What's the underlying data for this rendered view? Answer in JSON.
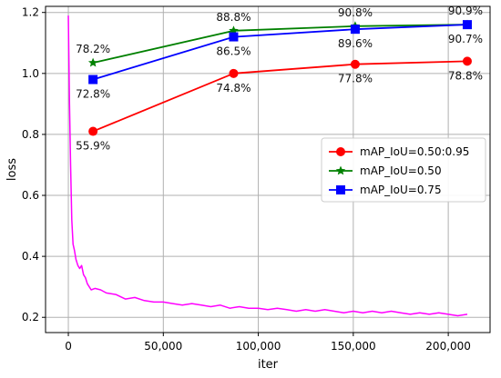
{
  "chart_data": {
    "type": "line",
    "title": "",
    "xlabel": "iter",
    "ylabel": "loss",
    "xlim": [
      -12000,
      222000
    ],
    "ylim": [
      0.15,
      1.22
    ],
    "xticks": [
      0,
      50000,
      100000,
      150000,
      200000
    ],
    "xtick_labels": [
      "0",
      "50,000",
      "100,000",
      "150,000",
      "200,000"
    ],
    "yticks": [
      0.2,
      0.4,
      0.6,
      0.8,
      1.0,
      1.2
    ],
    "ytick_labels": [
      "0.2",
      "0.4",
      "0.6",
      "0.8",
      "1.0",
      "1.2"
    ],
    "grid": true,
    "legend_position": "center-right",
    "series": [
      {
        "name": "mAP_IoU=0.50:0.95",
        "color": "#ff0000",
        "marker": "circle",
        "x": [
          13000,
          87000,
          151000,
          210000
        ],
        "y": [
          0.81,
          1.0,
          1.03,
          1.04
        ],
        "labels": [
          "55.9%",
          "74.8%",
          "77.8%",
          "78.8%"
        ],
        "label_position": "below"
      },
      {
        "name": "mAP_IoU=0.50",
        "color": "#008000",
        "marker": "star",
        "x": [
          13000,
          87000,
          151000,
          210000
        ],
        "y": [
          1.035,
          1.14,
          1.155,
          1.16
        ],
        "labels": [
          "78.2%",
          "88.8%",
          "90.8%",
          "90.9%"
        ],
        "label_position": "above"
      },
      {
        "name": "mAP_IoU=0.75",
        "color": "#0000ff",
        "marker": "square",
        "x": [
          13000,
          87000,
          151000,
          210000
        ],
        "y": [
          0.98,
          1.12,
          1.145,
          1.16
        ],
        "labels": [
          "72.8%",
          "86.5%",
          "89.6%",
          "90.7%"
        ],
        "label_position": "below"
      }
    ],
    "loss_curve": {
      "color": "#ff00ff",
      "description": "training loss, not in legend",
      "x": [
        0,
        600,
        1200,
        1800,
        2500,
        3200,
        4000,
        5000,
        6000,
        7000,
        8000,
        9000,
        10000,
        12000,
        14000,
        17000,
        20000,
        25000,
        30000,
        35000,
        40000,
        45000,
        50000,
        55000,
        60000,
        65000,
        70000,
        75000,
        80000,
        85000,
        90000,
        95000,
        100000,
        105000,
        110000,
        115000,
        120000,
        125000,
        130000,
        135000,
        140000,
        145000,
        150000,
        155000,
        160000,
        165000,
        170000,
        175000,
        180000,
        185000,
        190000,
        195000,
        200000,
        205000,
        210000
      ],
      "y": [
        1.19,
        0.9,
        0.7,
        0.52,
        0.44,
        0.42,
        0.39,
        0.37,
        0.36,
        0.37,
        0.34,
        0.33,
        0.31,
        0.29,
        0.295,
        0.29,
        0.28,
        0.275,
        0.26,
        0.265,
        0.255,
        0.25,
        0.25,
        0.245,
        0.24,
        0.245,
        0.24,
        0.235,
        0.24,
        0.23,
        0.235,
        0.23,
        0.23,
        0.225,
        0.23,
        0.225,
        0.22,
        0.225,
        0.22,
        0.225,
        0.22,
        0.215,
        0.22,
        0.215,
        0.22,
        0.215,
        0.22,
        0.215,
        0.21,
        0.215,
        0.21,
        0.215,
        0.21,
        0.205,
        0.21
      ]
    }
  }
}
